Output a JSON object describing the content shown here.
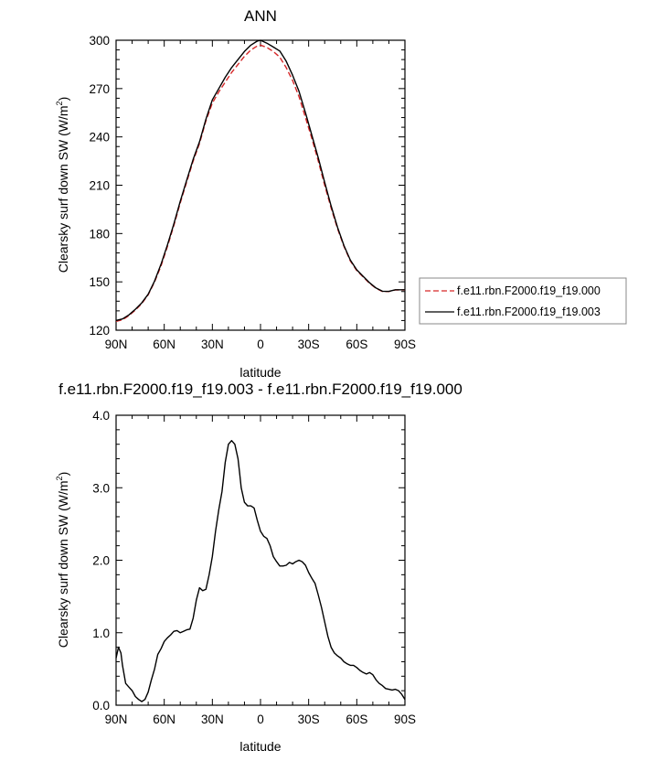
{
  "chart_data": [
    {
      "type": "line",
      "title": "ANN",
      "xlabel": "latitude",
      "ylabel": "Clearsky surf down SW (W/m",
      "ylabel_sup": "2",
      "ylabel_end": ")",
      "xlim": [
        90,
        -90
      ],
      "ylim": [
        120,
        300
      ],
      "xticks": [
        {
          "v": 90,
          "label": "90N"
        },
        {
          "v": 60,
          "label": "60N"
        },
        {
          "v": 30,
          "label": "30N"
        },
        {
          "v": 0,
          "label": "0"
        },
        {
          "v": -30,
          "label": "30S"
        },
        {
          "v": -60,
          "label": "60S"
        },
        {
          "v": -90,
          "label": "90S"
        }
      ],
      "yticks": [
        120,
        150,
        180,
        210,
        240,
        270,
        300
      ],
      "legend_position": "right",
      "series": [
        {
          "name": "f.e11.rbn.F2000.f19_f19.000",
          "color": "#d62728",
          "dash": "dashed",
          "x": [
            90,
            86,
            82,
            78,
            74,
            70,
            66,
            62,
            58,
            54,
            50,
            46,
            42,
            38,
            34,
            30,
            26,
            22,
            18,
            14,
            10,
            6,
            2,
            0,
            -4,
            -8,
            -12,
            -16,
            -20,
            -24,
            -28,
            -32,
            -36,
            -40,
            -44,
            -48,
            -52,
            -56,
            -60,
            -64,
            -68,
            -72,
            -76,
            -80,
            -84,
            -88,
            -90
          ],
          "y": [
            125.5,
            126.5,
            129,
            132.5,
            136.5,
            142,
            150,
            160,
            172,
            185,
            199,
            212,
            225,
            236,
            250,
            261,
            268,
            274,
            280,
            285,
            290,
            294,
            296.5,
            297,
            295.5,
            293,
            289.5,
            283,
            275,
            265,
            252,
            239,
            225,
            210,
            196,
            183,
            172,
            163,
            157,
            153,
            149,
            146,
            144,
            144,
            145,
            145,
            145
          ]
        },
        {
          "name": "f.e11.rbn.F2000.f19_f19.003",
          "color": "#000000",
          "dash": "solid",
          "x": [
            90,
            86,
            82,
            78,
            74,
            70,
            66,
            62,
            58,
            54,
            50,
            46,
            42,
            38,
            34,
            30,
            26,
            22,
            18,
            14,
            10,
            6,
            2,
            0,
            -4,
            -8,
            -12,
            -16,
            -20,
            -24,
            -28,
            -32,
            -36,
            -40,
            -44,
            -48,
            -52,
            -56,
            -60,
            -64,
            -68,
            -72,
            -76,
            -80,
            -84,
            -88,
            -90
          ],
          "y": [
            126,
            127,
            129.5,
            133,
            137,
            142.3,
            150.5,
            161,
            173,
            186,
            200,
            213,
            226,
            237,
            251,
            263,
            270,
            277,
            283,
            288,
            293,
            297,
            299.5,
            300,
            298.2,
            295.8,
            293.3,
            287,
            278.3,
            268.3,
            255,
            241,
            227,
            211.8,
            197.2,
            183.8,
            172.5,
            163.5,
            157.5,
            153.4,
            149.4,
            146.2,
            144.2,
            144.1,
            145.1,
            145.1,
            145.1
          ]
        }
      ]
    },
    {
      "type": "line",
      "title": "f.e11.rbn.F2000.f19_f19.003 - f.e11.rbn.F2000.f19_f19.000",
      "xlabel": "latitude",
      "ylabel": "Clearsky surf down SW (W/m",
      "ylabel_sup": "2",
      "ylabel_end": ")",
      "xlim": [
        90,
        -90
      ],
      "ylim": [
        0,
        4
      ],
      "xticks": [
        {
          "v": 90,
          "label": "90N"
        },
        {
          "v": 60,
          "label": "60N"
        },
        {
          "v": 30,
          "label": "30N"
        },
        {
          "v": 0,
          "label": "0"
        },
        {
          "v": -30,
          "label": "30S"
        },
        {
          "v": -60,
          "label": "60S"
        },
        {
          "v": -90,
          "label": "90S"
        }
      ],
      "yticks": [
        {
          "v": 0,
          "label": "0.0"
        },
        {
          "v": 1,
          "label": "1.0"
        },
        {
          "v": 2,
          "label": "2.0"
        },
        {
          "v": 3,
          "label": "3.0"
        },
        {
          "v": 4,
          "label": "4.0"
        }
      ],
      "series": [
        {
          "color": "#000000",
          "dash": "solid",
          "x": [
            90,
            88.5,
            87,
            86,
            84,
            82,
            80,
            78,
            76,
            74,
            72,
            70,
            68,
            66,
            64,
            62,
            60,
            58,
            56,
            54,
            52,
            50,
            48,
            46,
            44,
            42,
            40,
            38,
            36,
            34,
            32,
            30,
            28,
            26,
            24,
            22,
            20,
            18,
            16,
            14,
            13,
            12,
            10,
            8,
            6,
            4,
            2,
            0,
            -2,
            -4,
            -6,
            -8,
            -10,
            -12,
            -14,
            -16,
            -18,
            -20,
            -22,
            -24,
            -26,
            -28,
            -30,
            -32,
            -34,
            -36,
            -38,
            -40,
            -42,
            -44,
            -46,
            -48,
            -50,
            -52,
            -54,
            -56,
            -58,
            -60,
            -62,
            -64,
            -66,
            -68,
            -70,
            -72,
            -74,
            -76,
            -78,
            -80,
            -82,
            -84,
            -86,
            -88,
            -90
          ],
          "y": [
            0.65,
            0.8,
            0.72,
            0.55,
            0.3,
            0.25,
            0.2,
            0.12,
            0.08,
            0.05,
            0.08,
            0.18,
            0.35,
            0.5,
            0.7,
            0.78,
            0.88,
            0.93,
            0.97,
            1.02,
            1.03,
            1.0,
            1.02,
            1.04,
            1.05,
            1.2,
            1.45,
            1.62,
            1.58,
            1.6,
            1.8,
            2.05,
            2.4,
            2.7,
            2.95,
            3.35,
            3.6,
            3.65,
            3.6,
            3.4,
            3.2,
            3.0,
            2.8,
            2.75,
            2.75,
            2.72,
            2.55,
            2.4,
            2.33,
            2.3,
            2.2,
            2.05,
            1.98,
            1.92,
            1.92,
            1.93,
            1.97,
            1.95,
            1.98,
            2.0,
            1.98,
            1.93,
            1.83,
            1.75,
            1.68,
            1.52,
            1.35,
            1.15,
            0.95,
            0.8,
            0.72,
            0.68,
            0.65,
            0.6,
            0.57,
            0.55,
            0.55,
            0.52,
            0.48,
            0.45,
            0.43,
            0.45,
            0.42,
            0.35,
            0.3,
            0.27,
            0.23,
            0.22,
            0.21,
            0.22,
            0.2,
            0.15,
            0.08
          ]
        }
      ]
    }
  ]
}
